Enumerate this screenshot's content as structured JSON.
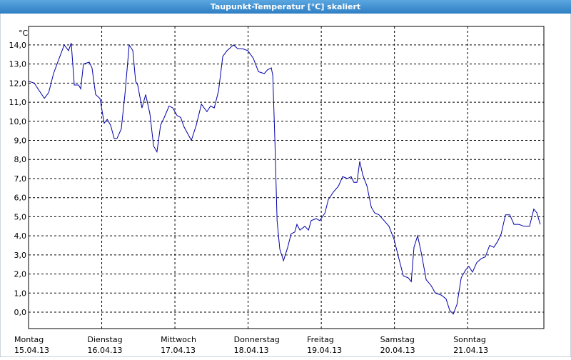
{
  "chart_data": {
    "type": "line",
    "title": "Taupunkt-Temperatur [°C] skaliert",
    "y_unit": "°C",
    "xlim": [
      0,
      169
    ],
    "ylim": [
      -0.86,
      14.97
    ],
    "grid": true,
    "xticks": [
      {
        "value": 0,
        "label": "Montag"
      },
      {
        "value": 24,
        "label": "Dienstag"
      },
      {
        "value": 48,
        "label": "Mittwoch"
      },
      {
        "value": 72,
        "label": "Donnerstag"
      },
      {
        "value": 96,
        "label": "Freitag"
      },
      {
        "value": 120,
        "label": "Samstag"
      },
      {
        "value": 144,
        "label": "Sonntag"
      }
    ],
    "xtick_dates": [
      "15.04.13",
      "16.04.13",
      "17.04.13",
      "18.04.13",
      "19.04.13",
      "20.04.13",
      "21.04.13"
    ],
    "yticks": [
      {
        "value": 0,
        "label": "0,0"
      },
      {
        "value": 1,
        "label": "1,0"
      },
      {
        "value": 2,
        "label": "2,0"
      },
      {
        "value": 3,
        "label": "3,0"
      },
      {
        "value": 4,
        "label": "4,0"
      },
      {
        "value": 5,
        "label": "5,0"
      },
      {
        "value": 6,
        "label": "6,0"
      },
      {
        "value": 7,
        "label": "7,0"
      },
      {
        "value": 8,
        "label": "8,0"
      },
      {
        "value": 9,
        "label": "9,0"
      },
      {
        "value": 10,
        "label": "10,0"
      },
      {
        "value": 11,
        "label": "11,0"
      },
      {
        "value": 12,
        "label": "12,0"
      },
      {
        "value": 13,
        "label": "13,0"
      },
      {
        "value": 14,
        "label": "14,0"
      }
    ],
    "series": [
      {
        "color": "#0000a8",
        "x": [
          0,
          1.9,
          3.5,
          5.2,
          6.6,
          8.2,
          9.8,
          11.7,
          13.1,
          14.0,
          15.0,
          16.4,
          17.1,
          18.0,
          19.9,
          20.8,
          22.0,
          23.4,
          24.8,
          25.8,
          26.9,
          28.1,
          29.0,
          30.4,
          31.6,
          33.0,
          34.2,
          35.1,
          35.8,
          37.2,
          38.4,
          39.8,
          41.0,
          42.1,
          43.3,
          44.5,
          46.1,
          47.3,
          48.7,
          49.9,
          51.0,
          53.4,
          55.0,
          56.7,
          58.5,
          59.7,
          60.9,
          62.3,
          63.7,
          65.1,
          67.2,
          68.6,
          70.2,
          71.9,
          73.7,
          75.4,
          77.3,
          78.4,
          79.6,
          80.1,
          80.8,
          81.5,
          82.4,
          83.6,
          85.0,
          86.1,
          87.3,
          88.0,
          89.0,
          90.6,
          91.8,
          92.7,
          94.3,
          95.5,
          97.2,
          98.3,
          100.0,
          101.6,
          103.0,
          104.6,
          105.8,
          106.7,
          107.7,
          108.6,
          109.6,
          111.0,
          112.4,
          113.5,
          114.9,
          116.6,
          118.2,
          119.9,
          121.3,
          122.9,
          124.5,
          125.5,
          126.4,
          127.6,
          128.8,
          130.4,
          132.0,
          133.4,
          135.3,
          136.9,
          138.1,
          139.3,
          140.5,
          141.9,
          143.3,
          144.4,
          145.6,
          147.0,
          148.4,
          149.8,
          151.2,
          152.6,
          153.8,
          155.0,
          156.4,
          157.8,
          159.2,
          160.8,
          162.5,
          164.3,
          165.7,
          166.7,
          167.8
        ],
        "values": [
          12.1,
          12.0,
          11.6,
          11.2,
          11.5,
          12.5,
          13.2,
          14.0,
          13.7,
          14.1,
          11.9,
          11.9,
          11.7,
          13.0,
          13.1,
          12.8,
          11.4,
          11.2,
          9.9,
          10.1,
          9.8,
          9.1,
          9.1,
          9.6,
          11.4,
          14.0,
          13.7,
          12.1,
          11.9,
          10.7,
          11.4,
          10.4,
          8.7,
          8.4,
          9.8,
          10.2,
          10.8,
          10.7,
          10.3,
          10.2,
          9.7,
          9.0,
          9.8,
          10.9,
          10.5,
          10.8,
          10.7,
          11.6,
          13.4,
          13.7,
          14.0,
          13.8,
          13.8,
          13.7,
          13.3,
          12.6,
          12.5,
          12.7,
          12.8,
          12.4,
          8.9,
          4.8,
          3.3,
          2.7,
          3.4,
          4.1,
          4.2,
          4.6,
          4.3,
          4.5,
          4.3,
          4.8,
          4.9,
          4.8,
          5.2,
          5.9,
          6.3,
          6.6,
          7.1,
          7.0,
          7.1,
          6.8,
          6.8,
          7.9,
          7.2,
          6.6,
          5.5,
          5.2,
          5.1,
          4.8,
          4.5,
          3.8,
          2.9,
          1.9,
          1.8,
          1.6,
          3.4,
          4.0,
          3.1,
          1.7,
          1.4,
          1.0,
          0.9,
          0.7,
          0.1,
          -0.1,
          0.4,
          1.8,
          2.2,
          2.4,
          2.1,
          2.6,
          2.8,
          2.9,
          3.5,
          3.4,
          3.7,
          4.1,
          5.1,
          5.1,
          4.6,
          4.6,
          4.5,
          4.5,
          5.4,
          5.2,
          4.6
        ]
      }
    ]
  }
}
